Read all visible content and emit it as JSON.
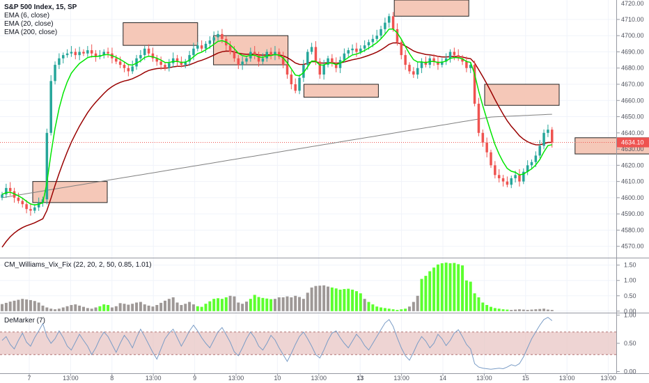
{
  "chart_data": {
    "type": "candlestick",
    "title": "S&P 500 Index, 15, SP",
    "currency": "USD",
    "price_axis": {
      "range": [
        4563,
        4722
      ],
      "ticks": [
        4570,
        4580,
        4590,
        4600,
        4610,
        4620,
        4630,
        4640,
        4650,
        4660,
        4670,
        4680,
        4690,
        4700,
        4710
      ],
      "tick_labels": [
        "4570.00",
        "4580.00",
        "4590.00",
        "4600.00",
        "4610.00",
        "4620.00",
        "4630.00",
        "4640.00",
        "4650.00",
        "4660.00",
        "4670.00",
        "4680.00",
        "4690.00",
        "4700.00",
        "4710.00"
      ],
      "top_label": "4720.00",
      "last_price": 4634.1,
      "last_price_label": "4634.10"
    },
    "time_axis": {
      "labels": [
        "7",
        "13:00",
        "8",
        "13:00",
        "9",
        "13:00",
        "10",
        "13:00",
        "13",
        "13:00",
        "14",
        "13:00",
        "15",
        "13:00",
        "13:00"
      ],
      "bold": [
        false,
        false,
        false,
        false,
        false,
        false,
        false,
        false,
        true,
        false,
        false,
        false,
        false,
        false,
        false
      ]
    },
    "legend": [
      "EMA (6, close)",
      "EMA (20, close)",
      "EMA (200, close)"
    ],
    "series_colors": {
      "up": "#26a69a",
      "down": "#ef5350",
      "ema6": "#00e600",
      "ema20": "#990000",
      "ema200": "#808080",
      "zone_fill": "#f5c8b8",
      "zone_border": "#222222"
    },
    "close_series": [
      4602,
      4606,
      4604,
      4600,
      4598,
      4596,
      4593,
      4592,
      4594,
      4597,
      4599,
      4640,
      4672,
      4682,
      4686,
      4688,
      4689,
      4690,
      4688,
      4690,
      4689,
      4691,
      4689,
      4687,
      4688,
      4690,
      4689,
      4686,
      4684,
      4682,
      4680,
      4678,
      4681,
      4686,
      4688,
      4692,
      4689,
      4686,
      4684,
      4682,
      4680,
      4683,
      4686,
      4684,
      4682,
      4684,
      4688,
      4692,
      4694,
      4692,
      4695,
      4697,
      4699,
      4701,
      4698,
      4694,
      4690,
      4686,
      4682,
      4684,
      4686,
      4690,
      4688,
      4684,
      4686,
      4690,
      4688,
      4690,
      4687,
      4682,
      4676,
      4670,
      4666,
      4674,
      4682,
      4690,
      4693,
      4684,
      4676,
      4682,
      4686,
      4683,
      4680,
      4685,
      4689,
      4691,
      4692,
      4690,
      4692,
      4694,
      4696,
      4698,
      4700,
      4704,
      4708,
      4712,
      4704,
      4696,
      4688,
      4682,
      4678,
      4676,
      4680,
      4684,
      4682,
      4686,
      4684,
      4682,
      4684,
      4686,
      4690,
      4688,
      4686,
      4684,
      4680,
      4682,
      4658,
      4640,
      4634,
      4628,
      4620,
      4614,
      4612,
      4610,
      4608,
      4612,
      4614,
      4610,
      4616,
      4620,
      4622,
      4626,
      4632,
      4640,
      4642,
      4634
    ],
    "zones": [
      {
        "t0": 4,
        "t1": 14,
        "hi": 4610,
        "lo": 4597
      },
      {
        "t0": 15,
        "t1": 25,
        "hi": 4708,
        "lo": 4694
      },
      {
        "t0": 26,
        "t1": 36,
        "hi": 4700,
        "lo": 4682
      },
      {
        "t0": 37,
        "t1": 47,
        "hi": 4670,
        "lo": 4662
      },
      {
        "t0": 48,
        "t1": 58,
        "hi": 4722,
        "lo": 4712
      },
      {
        "t0": 59,
        "t1": 69,
        "hi": 4670,
        "lo": 4657
      },
      {
        "t0": 70,
        "t1": 80,
        "hi": 4637,
        "lo": 4627
      }
    ],
    "panel_williams": {
      "title": "CM_Williams_Vix_Fix (22, 20, 2, 50, 0.85, 1.01)",
      "range": [
        -0.05,
        1.72
      ],
      "ticks": [
        0.0,
        0.5,
        1.0,
        1.5
      ],
      "tick_labels": [
        "0.00",
        "0.50",
        "1.00",
        "1.50"
      ],
      "highlight_color": "#5cff2e",
      "normal_color": "#9e9896",
      "values": [
        0.23,
        0.27,
        0.31,
        0.34,
        0.37,
        0.4,
        0.38,
        0.36,
        0.33,
        0.28,
        0.18,
        0.12,
        0.08,
        0.06,
        0.08,
        0.12,
        0.16,
        0.2,
        0.22,
        0.18,
        0.14,
        0.1,
        0.08,
        0.12,
        0.16,
        0.22,
        0.2,
        0.12,
        0.16,
        0.26,
        0.24,
        0.21,
        0.24,
        0.28,
        0.3,
        0.22,
        0.18,
        0.15,
        0.2,
        0.27,
        0.34,
        0.4,
        0.45,
        0.28,
        0.2,
        0.24,
        0.3,
        0.22,
        0.16,
        0.14,
        0.24,
        0.32,
        0.4,
        0.42,
        0.4,
        0.45,
        0.5,
        0.48,
        0.28,
        0.24,
        0.31,
        0.4,
        0.53,
        0.46,
        0.43,
        0.41,
        0.39,
        0.4,
        0.45,
        0.45,
        0.48,
        0.45,
        0.5,
        0.46,
        0.4,
        0.6,
        0.77,
        0.82,
        0.83,
        0.84,
        0.8,
        0.77,
        0.74,
        0.7,
        0.72,
        0.73,
        0.7,
        0.65,
        0.58,
        0.4,
        0.3,
        0.22,
        0.15,
        0.12,
        0.1,
        0.08,
        0.06,
        0.04,
        0.06,
        0.08,
        0.15,
        0.3,
        0.5,
        1.05,
        1.15,
        1.3,
        1.42,
        1.52,
        1.56,
        1.58,
        1.56,
        1.57,
        1.53,
        1.49,
        1.0,
        0.96,
        0.58,
        0.45,
        0.28,
        0.2,
        0.14,
        0.1,
        0.08,
        0.06,
        0.05,
        0.04,
        0.05,
        0.06,
        0.05,
        0.04,
        0.05,
        0.06,
        0.07,
        0.08,
        0.05,
        0.04
      ],
      "highlight": [
        false,
        false,
        false,
        false,
        false,
        false,
        false,
        false,
        false,
        false,
        false,
        false,
        false,
        false,
        false,
        false,
        false,
        false,
        false,
        false,
        false,
        false,
        false,
        false,
        false,
        false,
        false,
        false,
        false,
        false,
        false,
        false,
        false,
        false,
        false,
        false,
        false,
        false,
        false,
        false,
        false,
        false,
        false,
        false,
        false,
        false,
        false,
        false,
        false,
        false,
        false,
        false,
        false,
        false,
        false,
        false,
        false,
        false,
        false,
        false,
        false,
        false,
        false,
        false,
        false,
        false,
        false,
        false,
        false,
        false,
        false,
        false,
        false,
        false,
        false,
        false,
        false,
        false,
        false,
        false,
        false,
        false,
        false,
        false,
        false,
        false,
        false,
        false,
        false,
        false,
        false,
        false,
        false,
        false,
        false,
        false,
        false,
        false,
        false,
        false,
        false,
        false,
        false,
        false,
        false,
        false,
        false,
        false,
        false,
        false,
        false,
        false,
        false,
        false,
        false,
        false,
        false,
        false,
        false,
        false,
        false,
        false,
        false,
        false,
        false,
        false,
        false,
        false,
        false,
        false,
        false,
        false,
        false,
        false,
        false,
        false
      ]
    },
    "panel_demarker": {
      "title": "DeMarker (7)",
      "range": [
        -0.03,
        1.03
      ],
      "ticks": [
        0.0,
        0.5,
        1.0
      ],
      "tick_labels": [
        "0.00",
        "0.50",
        "1.00"
      ],
      "band": [
        0.3,
        0.7
      ],
      "band_fill": "#e8c6c4",
      "line_color": "#7a9cc6",
      "values": [
        0.55,
        0.62,
        0.48,
        0.4,
        0.55,
        0.68,
        0.52,
        0.45,
        0.6,
        0.72,
        0.85,
        0.62,
        0.5,
        0.58,
        0.72,
        0.6,
        0.45,
        0.38,
        0.52,
        0.66,
        0.55,
        0.45,
        0.3,
        0.42,
        0.58,
        0.7,
        0.62,
        0.48,
        0.34,
        0.5,
        0.64,
        0.55,
        0.42,
        0.6,
        0.75,
        0.62,
        0.48,
        0.34,
        0.22,
        0.4,
        0.58,
        0.68,
        0.75,
        0.6,
        0.45,
        0.58,
        0.72,
        0.82,
        0.72,
        0.6,
        0.5,
        0.42,
        0.56,
        0.7,
        0.78,
        0.65,
        0.52,
        0.35,
        0.28,
        0.42,
        0.58,
        0.7,
        0.6,
        0.45,
        0.38,
        0.5,
        0.64,
        0.56,
        0.42,
        0.3,
        0.18,
        0.32,
        0.48,
        0.62,
        0.7,
        0.58,
        0.45,
        0.3,
        0.24,
        0.38,
        0.55,
        0.68,
        0.72,
        0.6,
        0.5,
        0.42,
        0.54,
        0.66,
        0.58,
        0.46,
        0.38,
        0.5,
        0.62,
        0.74,
        0.86,
        0.92,
        0.8,
        0.6,
        0.42,
        0.28,
        0.2,
        0.34,
        0.5,
        0.62,
        0.54,
        0.42,
        0.5,
        0.66,
        0.58,
        0.46,
        0.55,
        0.68,
        0.74,
        0.62,
        0.48,
        0.4,
        0.14,
        0.08,
        0.06,
        0.05,
        0.04,
        0.05,
        0.06,
        0.05,
        0.08,
        0.12,
        0.1,
        0.14,
        0.26,
        0.42,
        0.58,
        0.7,
        0.82,
        0.92,
        0.96,
        0.9
      ]
    }
  }
}
